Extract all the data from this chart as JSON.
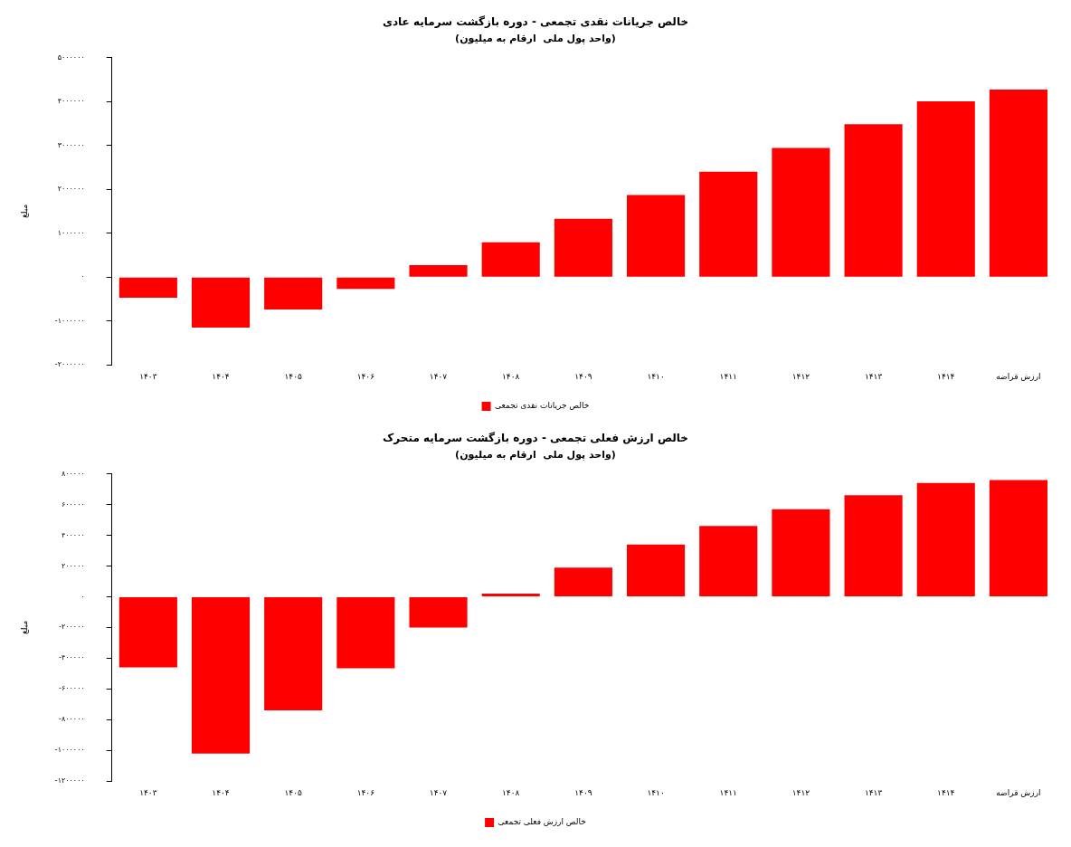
{
  "chart_data": [
    {
      "type": "bar",
      "title": "خالص جریانات نقدی تجمعی - دوره بازگشت سرمایه عادی",
      "subtitle": "(واحد پول ملی  ارقام به میلیون)",
      "ylabel": "مبلغ",
      "categories": [
        "۱۴۰۳",
        "۱۴۰۴",
        "۱۴۰۵",
        "۱۴۰۶",
        "۱۴۰۷",
        "۱۴۰۸",
        "۱۴۰۹",
        "۱۴۱۰",
        "۱۴۱۱",
        "۱۴۱۲",
        "۱۴۱۳",
        "۱۴۱۴",
        "ارزش قراضه"
      ],
      "series": [
        {
          "name": "خالص جریانات نقدی تجمعی",
          "color": "#ff0000",
          "values": [
            -470000,
            -1150000,
            -740000,
            -270000,
            270000,
            790000,
            1330000,
            1870000,
            2400000,
            2940000,
            3480000,
            4000000,
            4270000
          ]
        }
      ],
      "ylim": [
        -2000000,
        5000000
      ],
      "yticks": [
        {
          "value": -2000000,
          "label": "-۲۰۰۰۰۰۰"
        },
        {
          "value": -1000000,
          "label": "-۱۰۰۰۰۰۰"
        },
        {
          "value": 0,
          "label": "۰"
        },
        {
          "value": 1000000,
          "label": "۱۰۰۰۰۰۰"
        },
        {
          "value": 2000000,
          "label": "۲۰۰۰۰۰۰"
        },
        {
          "value": 3000000,
          "label": "۳۰۰۰۰۰۰"
        },
        {
          "value": 4000000,
          "label": "۴۰۰۰۰۰۰"
        },
        {
          "value": 5000000,
          "label": "۵۰۰۰۰۰۰"
        }
      ],
      "grid": false,
      "legend": "bottom"
    },
    {
      "type": "bar",
      "title": "خالص ارزش فعلی تجمعی - دوره بازگشت سرمایه متحرک",
      "subtitle": "(واحد پول ملی  ارقام به میلیون)",
      "ylabel": "مبلغ",
      "categories": [
        "۱۴۰۳",
        "۱۴۰۴",
        "۱۴۰۵",
        "۱۴۰۶",
        "۱۴۰۷",
        "۱۴۰۸",
        "۱۴۰۹",
        "۱۴۱۰",
        "۱۴۱۱",
        "۱۴۱۲",
        "۱۴۱۳",
        "۱۴۱۴",
        "ارزش قراضه"
      ],
      "series": [
        {
          "name": "خالص ارزش فعلی تجمعی",
          "color": "#ff0000",
          "values": [
            -460000,
            -1020000,
            -740000,
            -465000,
            -200000,
            20000,
            190000,
            340000,
            460000,
            570000,
            660000,
            740000,
            760000
          ]
        }
      ],
      "ylim": [
        -1200000,
        800000
      ],
      "yticks": [
        {
          "value": -1200000,
          "label": "-۱۲۰۰۰۰۰"
        },
        {
          "value": -1000000,
          "label": "-۱۰۰۰۰۰۰"
        },
        {
          "value": -800000,
          "label": "-۸۰۰۰۰۰"
        },
        {
          "value": -600000,
          "label": "-۶۰۰۰۰۰"
        },
        {
          "value": -400000,
          "label": "-۴۰۰۰۰۰"
        },
        {
          "value": -200000,
          "label": "-۲۰۰۰۰۰"
        },
        {
          "value": 0,
          "label": "۰"
        },
        {
          "value": 200000,
          "label": "۲۰۰۰۰۰"
        },
        {
          "value": 400000,
          "label": "۴۰۰۰۰۰"
        },
        {
          "value": 600000,
          "label": "۶۰۰۰۰۰"
        },
        {
          "value": 800000,
          "label": "۸۰۰۰۰۰"
        }
      ],
      "grid": false,
      "legend": "bottom"
    }
  ]
}
